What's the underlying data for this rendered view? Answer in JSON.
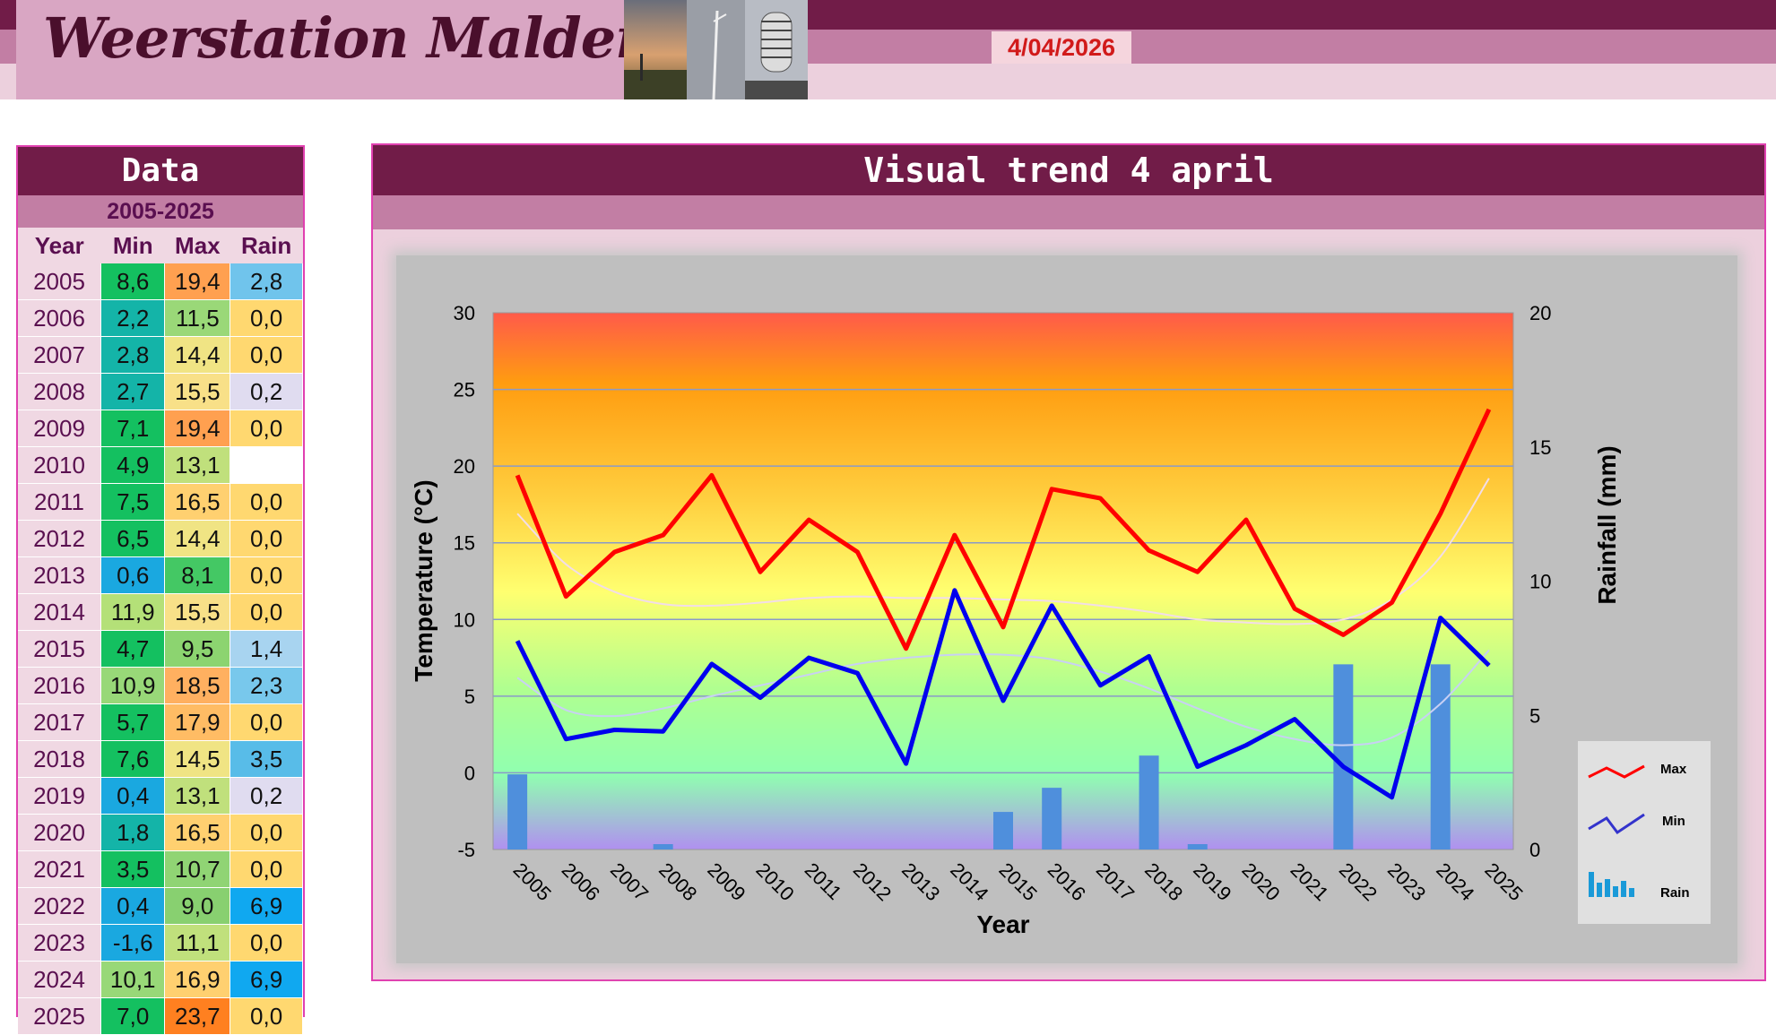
{
  "header": {
    "title": "Weerstation Malderen",
    "date": "4/04/2026"
  },
  "data_panel": {
    "title": "Data",
    "range": "2005-2025",
    "columns": [
      "Year",
      "Min",
      "Max",
      "Rain"
    ],
    "rows": [
      {
        "year": "2005",
        "min": "8,6",
        "max": "19,4",
        "rain": "2,8"
      },
      {
        "year": "2006",
        "min": "2,2",
        "max": "11,5",
        "rain": "0,0"
      },
      {
        "year": "2007",
        "min": "2,8",
        "max": "14,4",
        "rain": "0,0"
      },
      {
        "year": "2008",
        "min": "2,7",
        "max": "15,5",
        "rain": "0,2"
      },
      {
        "year": "2009",
        "min": "7,1",
        "max": "19,4",
        "rain": "0,0"
      },
      {
        "year": "2010",
        "min": "4,9",
        "max": "13,1",
        "rain": ""
      },
      {
        "year": "2011",
        "min": "7,5",
        "max": "16,5",
        "rain": "0,0"
      },
      {
        "year": "2012",
        "min": "6,5",
        "max": "14,4",
        "rain": "0,0"
      },
      {
        "year": "2013",
        "min": "0,6",
        "max": "8,1",
        "rain": "0,0"
      },
      {
        "year": "2014",
        "min": "11,9",
        "max": "15,5",
        "rain": "0,0"
      },
      {
        "year": "2015",
        "min": "4,7",
        "max": "9,5",
        "rain": "1,4"
      },
      {
        "year": "2016",
        "min": "10,9",
        "max": "18,5",
        "rain": "2,3"
      },
      {
        "year": "2017",
        "min": "5,7",
        "max": "17,9",
        "rain": "0,0"
      },
      {
        "year": "2018",
        "min": "7,6",
        "max": "14,5",
        "rain": "3,5"
      },
      {
        "year": "2019",
        "min": "0,4",
        "max": "13,1",
        "rain": "0,2"
      },
      {
        "year": "2020",
        "min": "1,8",
        "max": "16,5",
        "rain": "0,0"
      },
      {
        "year": "2021",
        "min": "3,5",
        "max": "10,7",
        "rain": "0,0"
      },
      {
        "year": "2022",
        "min": "0,4",
        "max": "9,0",
        "rain": "6,9"
      },
      {
        "year": "2023",
        "min": "-1,6",
        "max": "11,1",
        "rain": "0,0"
      },
      {
        "year": "2024",
        "min": "10,1",
        "max": "16,9",
        "rain": "6,9"
      },
      {
        "year": "2025",
        "min": "7,0",
        "max": "23,7",
        "rain": "0,0"
      }
    ],
    "colors": {
      "min": [
        "#14c060",
        "#14b4a8",
        "#14b4a8",
        "#14b4a8",
        "#14c060",
        "#14c060",
        "#14c060",
        "#14c060",
        "#1aa8e0",
        "#b4e078",
        "#14c060",
        "#98d878",
        "#14c060",
        "#14c060",
        "#1aa8e0",
        "#14b4a8",
        "#14c060",
        "#1aa8e0",
        "#1aa8e0",
        "#98d878",
        "#14c060"
      ],
      "max": [
        "#ffa050",
        "#9ad878",
        "#f0e484",
        "#f8e088",
        "#ffa050",
        "#c0e07c",
        "#ffd070",
        "#f0e484",
        "#44c864",
        "#f8e088",
        "#8cd470",
        "#ffb060",
        "#ffbc64",
        "#f0e484",
        "#c0e07c",
        "#ffd070",
        "#90d474",
        "#88d070",
        "#c0e07c",
        "#ffd070",
        "#ff8020"
      ],
      "rain": [
        "#70c4ec",
        "#ffd870",
        "#ffd870",
        "#e0dcf0",
        "#ffd870",
        "#ffffff",
        "#ffd870",
        "#ffd870",
        "#ffd870",
        "#ffd870",
        "#a8d4f0",
        "#78c8ec",
        "#ffd870",
        "#58bce8",
        "#e0dcf0",
        "#ffd870",
        "#ffd870",
        "#10a8f0",
        "#ffd870",
        "#10a8f0",
        "#ffd870"
      ]
    }
  },
  "chart_panel": {
    "title": "Visual  trend 4 april"
  },
  "chart_data": {
    "type": "line",
    "xlabel": "Year",
    "ylabel": "Temperature (°C)",
    "y2label": "Rainfall (mm)",
    "ylim": [
      -5,
      30
    ],
    "y2lim": [
      0,
      20
    ],
    "yticks": [
      "-5",
      "0",
      "5",
      "10",
      "15",
      "20",
      "25",
      "30"
    ],
    "y2ticks": [
      "0",
      "5",
      "10",
      "15",
      "20"
    ],
    "categories": [
      "2005",
      "2006",
      "2007",
      "2008",
      "2009",
      "2010",
      "2011",
      "2012",
      "2013",
      "2014",
      "2015",
      "2016",
      "2017",
      "2018",
      "2019",
      "2020",
      "2021",
      "2022",
      "2023",
      "2024",
      "2025"
    ],
    "series": [
      {
        "name": "Max",
        "type": "line",
        "color": "#ff0000",
        "values": [
          19.4,
          11.5,
          14.4,
          15.5,
          19.4,
          13.1,
          16.5,
          14.4,
          8.1,
          15.5,
          9.5,
          18.5,
          17.9,
          14.5,
          13.1,
          16.5,
          10.7,
          9.0,
          11.1,
          16.9,
          23.7
        ]
      },
      {
        "name": "Min",
        "type": "line",
        "color": "#0000ee",
        "values": [
          8.6,
          2.2,
          2.8,
          2.7,
          7.1,
          4.9,
          7.5,
          6.5,
          0.6,
          11.9,
          4.7,
          10.9,
          5.7,
          7.6,
          0.4,
          1.8,
          3.5,
          0.4,
          -1.6,
          10.1,
          7.0
        ]
      },
      {
        "name": "Rain",
        "type": "bar",
        "color": "#4f8fdc",
        "axis": "y2",
        "values": [
          2.8,
          0.0,
          0.0,
          0.2,
          0.0,
          null,
          0.0,
          0.0,
          0.0,
          0.0,
          1.4,
          2.3,
          0.0,
          3.5,
          0.2,
          0.0,
          0.0,
          6.9,
          0.0,
          6.9,
          0.0
        ]
      }
    ],
    "trendlines": {
      "max": [
        16.9,
        13.6,
        11.8,
        11.0,
        10.9,
        11.1,
        11.4,
        11.5,
        11.4,
        11.4,
        11.3,
        11.2,
        10.9,
        10.5,
        10.0,
        9.8,
        9.7,
        10.0,
        11.3,
        14.1,
        19.2
      ],
      "min": [
        6.2,
        4.1,
        3.7,
        4.2,
        5.0,
        5.7,
        6.4,
        7.1,
        7.5,
        7.7,
        7.7,
        7.4,
        6.6,
        5.5,
        4.2,
        3.0,
        2.2,
        1.8,
        2.3,
        4.5,
        8.0
      ]
    },
    "legend": {
      "position": "right",
      "labels": [
        "Max",
        "Min",
        "Rain"
      ]
    },
    "grid": true
  }
}
